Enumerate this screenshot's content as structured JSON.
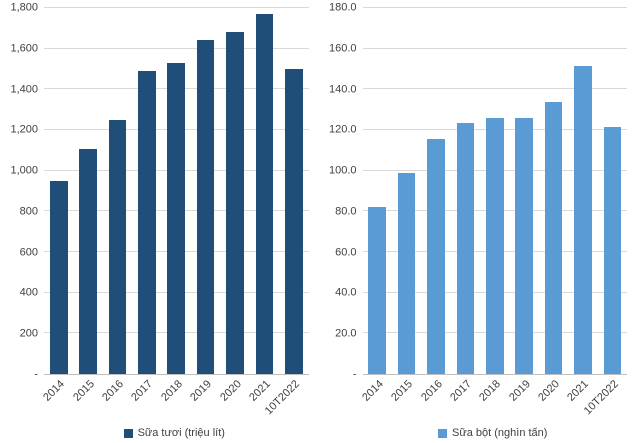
{
  "chart_data": [
    {
      "type": "bar",
      "legend": "Sữa tươi (triệu lít)",
      "color": "#1F4E79",
      "categories": [
        "2014",
        "2015",
        "2016",
        "2017",
        "2018",
        "2019",
        "2020",
        "2021",
        "10T2022"
      ],
      "values": [
        950,
        1105,
        1250,
        1490,
        1530,
        1645,
        1680,
        1770,
        1500
      ],
      "ylim": [
        0,
        1800
      ],
      "ytick_labels": [
        "-",
        "200",
        "400",
        "600",
        "800",
        "1,000",
        "1,200",
        "1,400",
        "1,600",
        "1,800"
      ],
      "grid": true,
      "legend_position": "bottom"
    },
    {
      "type": "bar",
      "legend": "Sữa bột (nghìn tấn)",
      "color": "#5B9BD5",
      "categories": [
        "2014",
        "2015",
        "2016",
        "2017",
        "2018",
        "2019",
        "2020",
        "2021",
        "10T2022"
      ],
      "values": [
        82,
        99,
        115.5,
        123.5,
        126,
        126,
        134,
        151.5,
        121.5
      ],
      "ylim": [
        0,
        180
      ],
      "ytick_labels": [
        "-",
        "20.0",
        "40.0",
        "60.0",
        "80.0",
        "100.0",
        "120.0",
        "140.0",
        "160.0",
        "180.0"
      ],
      "grid": true,
      "legend_position": "bottom"
    }
  ]
}
